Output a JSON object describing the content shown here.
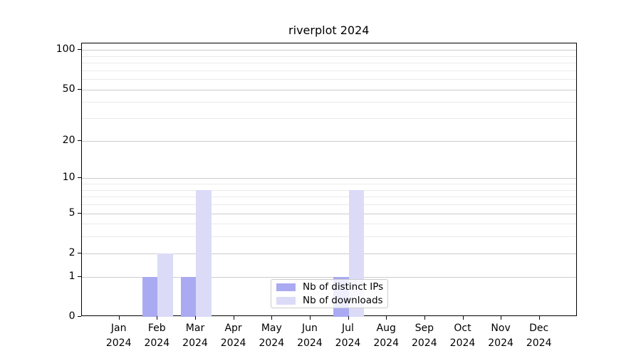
{
  "title": "riverplot 2024",
  "chart_data": {
    "type": "bar",
    "title": "riverplot 2024",
    "categories": [
      "Jan",
      "Feb",
      "Mar",
      "Apr",
      "May",
      "Jun",
      "Jul",
      "Aug",
      "Sep",
      "Oct",
      "Nov",
      "Dec"
    ],
    "category_year": "2024",
    "series": [
      {
        "name": "Nb of distinct IPs",
        "color": "#aaaaf2",
        "values": [
          0,
          1,
          1,
          0,
          0,
          0,
          1,
          0,
          0,
          0,
          0,
          0
        ]
      },
      {
        "name": "Nb of downloads",
        "color": "#dbdbf8",
        "values": [
          0,
          2,
          8,
          0,
          0,
          0,
          8,
          0,
          0,
          0,
          0,
          0
        ]
      }
    ],
    "xlabel": "",
    "ylabel": "",
    "yscale": "log1p",
    "ylim": [
      0,
      112
    ],
    "yticks": [
      0,
      1,
      2,
      5,
      10,
      20,
      50,
      100
    ],
    "ytick_labels": [
      "0",
      "1",
      "2",
      "5",
      "10",
      "20",
      "50",
      "100"
    ],
    "yticks_minor": [
      3,
      4,
      6,
      7,
      8,
      9,
      30,
      40,
      60,
      70,
      80,
      90
    ],
    "grid": true,
    "legend_position": "lower center",
    "colors": {
      "grid_major": "#cccccc",
      "grid_minor": "#eaeaea",
      "spine": "#000000",
      "legend_border": "#cccccc"
    }
  }
}
